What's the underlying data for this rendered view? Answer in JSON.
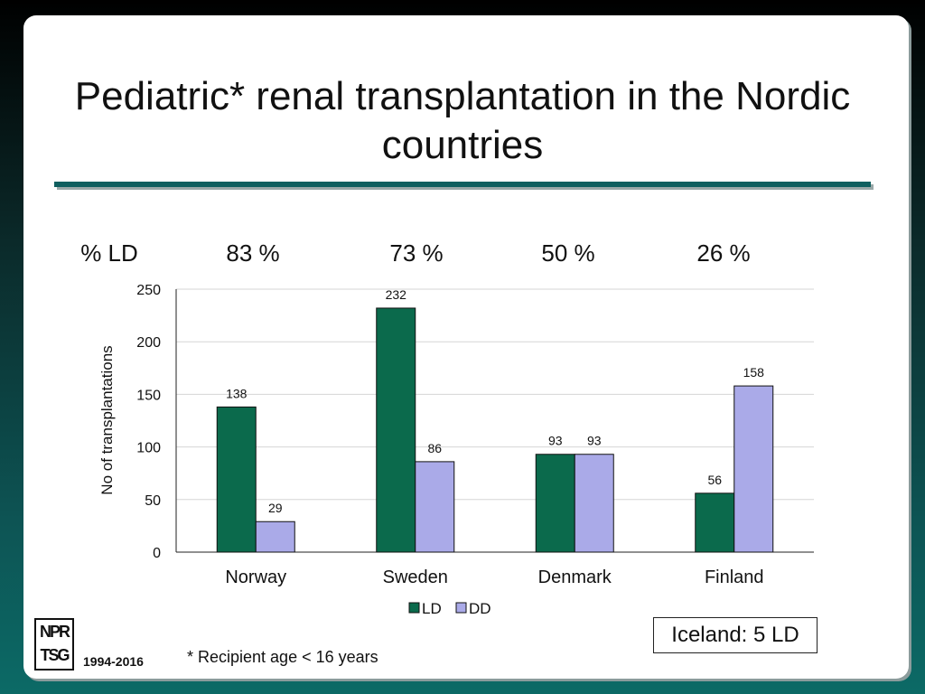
{
  "slide_title": "Pediatric* renal transplantation in the Nordic countries",
  "pct_ld_label": "% LD",
  "pct_ld": [
    "83 %",
    "73 %",
    "50 %",
    "26 %"
  ],
  "footnote": "* Recipient age < 16 years",
  "iceland_note": "Iceland: 5 LD",
  "logo": {
    "line1": "NPR",
    "line2": "TSG"
  },
  "years": "1994-2016",
  "colors": {
    "ld": "#0b6a4c",
    "dd": "#aaaae8",
    "rule": "#0f5f5f"
  },
  "chart_data": {
    "type": "bar",
    "title": "",
    "xlabel": "",
    "ylabel": "No of transplantations",
    "categories": [
      "Norway",
      "Sweden",
      "Denmark",
      "Finland"
    ],
    "series": [
      {
        "name": "LD",
        "values": [
          138,
          232,
          93,
          56
        ]
      },
      {
        "name": "DD",
        "values": [
          29,
          86,
          93,
          158
        ]
      }
    ],
    "ylim": [
      0,
      250
    ],
    "yticks": [
      0,
      50,
      100,
      150,
      200,
      250
    ],
    "grid": true,
    "legend": "bottom-center"
  }
}
